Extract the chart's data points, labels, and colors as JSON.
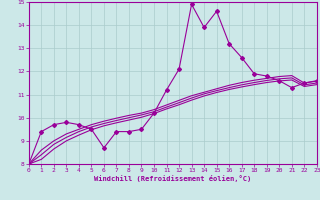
{
  "xlabel": "Windchill (Refroidissement éolien,°C)",
  "xlim": [
    0,
    23
  ],
  "ylim": [
    8,
    15
  ],
  "yticks": [
    8,
    9,
    10,
    11,
    12,
    13,
    14,
    15
  ],
  "xticks": [
    0,
    1,
    2,
    3,
    4,
    5,
    6,
    7,
    8,
    9,
    10,
    11,
    12,
    13,
    14,
    15,
    16,
    17,
    18,
    19,
    20,
    21,
    22,
    23
  ],
  "line_color": "#990099",
  "bg_color": "#cce8e8",
  "grid_color": "#aacccc",
  "series1_x": [
    0,
    1,
    2,
    3,
    4,
    5,
    6,
    7,
    8,
    9,
    10,
    11,
    12,
    13,
    14,
    15,
    16,
    17,
    18,
    19,
    20,
    21,
    22,
    23
  ],
  "series1_y": [
    8.0,
    9.4,
    9.7,
    9.8,
    9.7,
    9.5,
    8.7,
    9.4,
    9.4,
    9.5,
    10.2,
    11.2,
    12.1,
    14.9,
    13.9,
    14.6,
    13.2,
    12.6,
    11.9,
    11.8,
    11.6,
    11.3,
    11.5,
    11.6
  ],
  "series2_x": [
    0,
    1,
    2,
    3,
    4,
    5,
    6,
    7,
    8,
    9,
    10,
    11,
    12,
    13,
    14,
    15,
    16,
    17,
    18,
    19,
    20,
    21,
    22,
    23
  ],
  "series2_y": [
    8.0,
    8.6,
    9.0,
    9.3,
    9.5,
    9.7,
    9.85,
    9.98,
    10.1,
    10.2,
    10.35,
    10.55,
    10.75,
    10.95,
    11.1,
    11.25,
    11.4,
    11.52,
    11.62,
    11.7,
    11.78,
    11.82,
    11.5,
    11.58
  ],
  "series3_x": [
    0,
    1,
    2,
    3,
    4,
    5,
    6,
    7,
    8,
    9,
    10,
    11,
    12,
    13,
    14,
    15,
    16,
    17,
    18,
    19,
    20,
    21,
    22,
    23
  ],
  "series3_y": [
    8.0,
    8.4,
    8.85,
    9.15,
    9.4,
    9.6,
    9.75,
    9.88,
    10.0,
    10.12,
    10.26,
    10.46,
    10.65,
    10.85,
    11.03,
    11.17,
    11.3,
    11.42,
    11.52,
    11.61,
    11.68,
    11.72,
    11.42,
    11.5
  ],
  "series4_x": [
    0,
    1,
    2,
    3,
    4,
    5,
    6,
    7,
    8,
    9,
    10,
    11,
    12,
    13,
    14,
    15,
    16,
    17,
    18,
    19,
    20,
    21,
    22,
    23
  ],
  "series4_y": [
    8.0,
    8.2,
    8.65,
    9.0,
    9.25,
    9.48,
    9.65,
    9.78,
    9.9,
    10.02,
    10.18,
    10.38,
    10.56,
    10.76,
    10.94,
    11.09,
    11.22,
    11.33,
    11.43,
    11.52,
    11.59,
    11.63,
    11.35,
    11.43
  ]
}
